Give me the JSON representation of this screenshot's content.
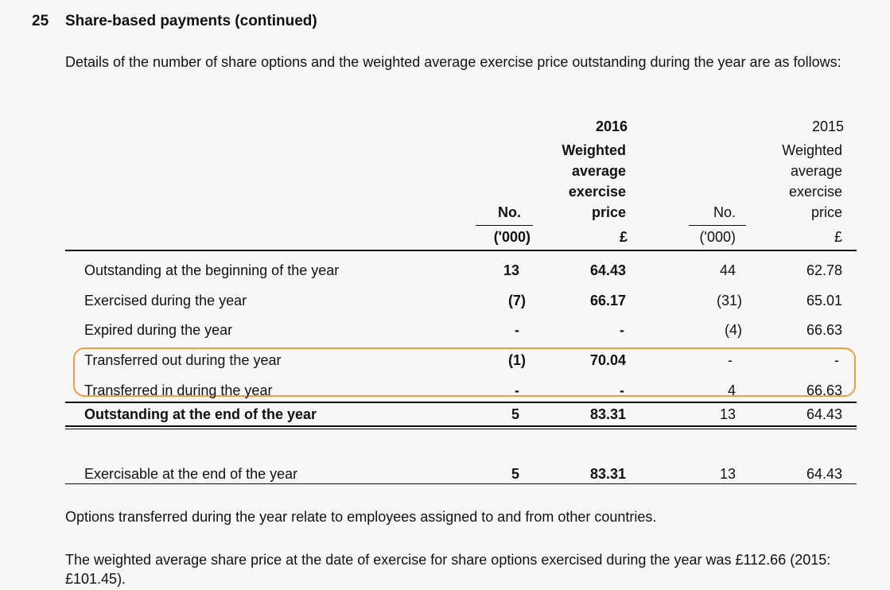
{
  "heading": {
    "number": "25",
    "title": "Share-based payments (continued)"
  },
  "intro": "Details of the number of share options and the weighted average exercise price outstanding during the year are as follows:",
  "columns": {
    "year_2016": "2016",
    "year_2015": "2015",
    "wavg_2016": [
      "Weighted",
      "average",
      "exercise",
      "price"
    ],
    "wavg_2015": [
      "Weighted",
      "average",
      "exercise",
      "price"
    ],
    "no_label": "No.",
    "unit_no": "('000)",
    "unit_price": "£"
  },
  "rows": [
    {
      "label": "Outstanding at the beginning of the year",
      "no_2016": "13",
      "price_2016": "64.43",
      "no_2015": "44",
      "price_2015": "62.78"
    },
    {
      "label": "Exercised during the year",
      "no_2016": "(7)",
      "price_2016": "66.17",
      "no_2015": "(31)",
      "price_2015": "65.01"
    },
    {
      "label": "Expired during the year",
      "no_2016": "-",
      "price_2016": "-",
      "no_2015": "(4)",
      "price_2015": "66.63"
    },
    {
      "label": "Transferred out during the year",
      "no_2016": "(1)",
      "price_2016": "70.04",
      "no_2015": "-",
      "price_2015": "-"
    },
    {
      "label": "Transferred in during the year",
      "no_2016": "-",
      "price_2016": "-",
      "no_2015": "4",
      "price_2015": "66.63"
    },
    {
      "label": "Outstanding at the end of the year",
      "no_2016": "5",
      "price_2016": "83.31",
      "no_2015": "13",
      "price_2015": "64.43"
    },
    {
      "label": "Exercisable at the end of the year",
      "no_2016": "5",
      "price_2016": "83.31",
      "no_2015": "13",
      "price_2015": "64.43"
    }
  ],
  "notes": [
    "Options transferred during the year relate to employees assigned to and from other countries.",
    "The weighted average share price at the date of exercise for share options exercised during the year was £112.66 (2015: £101.45)."
  ],
  "highlight_color": "#f0a040"
}
